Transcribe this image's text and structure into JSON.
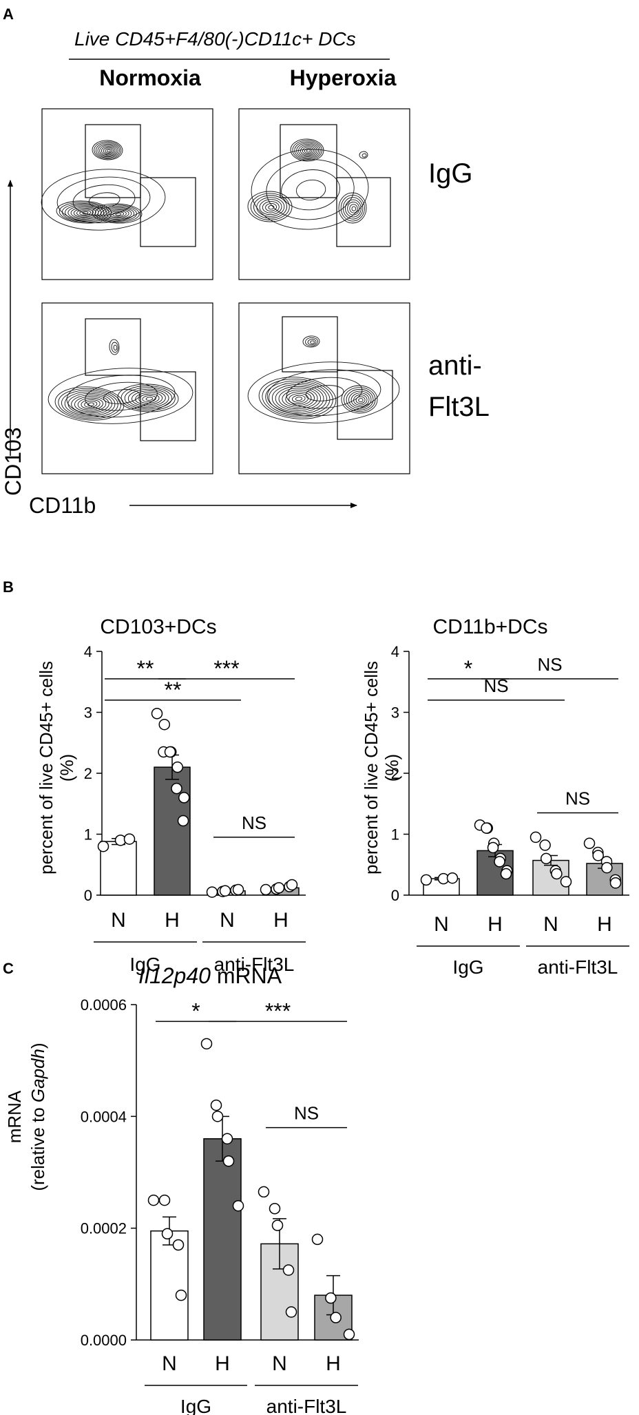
{
  "panel_a": {
    "label": "A",
    "gate_title": "Live CD45+F4/80(-)CD11c+ DCs",
    "col_labels": [
      "Normoxia",
      "Hyperoxia"
    ],
    "row_labels": [
      "IgG",
      "anti-",
      "Flt3L"
    ],
    "y_axis_label": "CD103",
    "x_axis_label": "CD11b"
  },
  "panel_b": {
    "label": "B",
    "ylabel_line1": "percent of live CD45+ cells",
    "ylabel_line2": "(%)"
  },
  "panel_c": {
    "label": "C",
    "title_italic": "Il12p40",
    "title_rest": " mRNA",
    "ylabel_line1": "mRNA",
    "ylabel_line2_a": "(relative to ",
    "ylabel_line2_italic": "Gapdh",
    "ylabel_line2_b": ")"
  },
  "colors": {
    "white": "#ffffff",
    "dark": "#5f5f5f",
    "light": "#d8d8d8",
    "mid": "#a7a7a7"
  },
  "chart_data": [
    {
      "type": "bar",
      "title": "CD103+DCs",
      "ylim": [
        0,
        4
      ],
      "yticks": [
        "0",
        "1",
        "2",
        "3",
        "4"
      ],
      "categories": [
        "N",
        "H",
        "N",
        "H"
      ],
      "groups": [
        "IgG",
        "anti-Flt3L"
      ],
      "values": [
        0.88,
        2.1,
        0.07,
        0.12
      ],
      "errors": [
        0.05,
        0.2,
        0.02,
        0.02
      ],
      "points": [
        [
          0.8,
          0.9,
          0.92
        ],
        [
          2.98,
          2.8,
          2.35,
          2.35,
          2.35,
          2.1,
          1.75,
          1.6,
          1.22
        ],
        [
          0.05,
          0.06,
          0.07,
          0.08,
          0.09
        ],
        [
          0.09,
          0.1,
          0.12,
          0.14,
          0.17
        ]
      ],
      "significance": [
        {
          "label": "**",
          "from": 0,
          "to": 1,
          "y": 3.55
        },
        {
          "label": "***",
          "from": 1,
          "to": 3,
          "y": 3.55
        },
        {
          "label": "**",
          "from": 0,
          "to": 2,
          "y": 3.2
        },
        {
          "label": "NS",
          "from": 2,
          "to": 3,
          "y": 0.95
        }
      ]
    },
    {
      "type": "bar",
      "title": "CD11b+DCs",
      "ylim": [
        0,
        4
      ],
      "yticks": [
        "0",
        "1",
        "2",
        "3",
        "4"
      ],
      "categories": [
        "N",
        "H",
        "N",
        "H"
      ],
      "groups": [
        "IgG",
        "anti-Flt3L"
      ],
      "values": [
        0.27,
        0.73,
        0.57,
        0.52
      ],
      "errors": [
        0.02,
        0.1,
        0.08,
        0.08
      ],
      "points": [
        [
          0.25,
          0.27,
          0.28
        ],
        [
          1.15,
          1.1,
          1.1,
          0.85,
          0.78,
          0.6,
          0.55,
          0.4,
          0.35
        ],
        [
          0.95,
          0.82,
          0.6,
          0.4,
          0.35,
          0.22
        ],
        [
          0.85,
          0.7,
          0.65,
          0.55,
          0.45,
          0.25,
          0.2
        ]
      ],
      "significance": [
        {
          "label": "*",
          "from": 0,
          "to": 1,
          "y": 3.55
        },
        {
          "label": "NS",
          "from": 1,
          "to": 3,
          "y": 3.55
        },
        {
          "label": "NS",
          "from": 0,
          "to": 2,
          "y": 3.2
        },
        {
          "label": "NS",
          "from": 2,
          "to": 3,
          "y": 1.35
        }
      ]
    },
    {
      "type": "bar",
      "title": "Il12p40 mRNA",
      "ylim": [
        0,
        0.0006
      ],
      "yticks": [
        "0.0000",
        "0.0002",
        "0.0004",
        "0.0006"
      ],
      "categories": [
        "N",
        "H",
        "N",
        "H"
      ],
      "groups": [
        "IgG",
        "anti-Flt3L"
      ],
      "values": [
        0.000195,
        0.00036,
        0.000172,
        8e-05
      ],
      "errors": [
        2.5e-05,
        4e-05,
        4.5e-05,
        3.5e-05
      ],
      "points": [
        [
          0.00025,
          0.00025,
          0.00019,
          0.00017,
          8e-05
        ],
        [
          0.00053,
          0.00042,
          0.0004,
          0.00036,
          0.00032,
          0.00024
        ],
        [
          0.000265,
          0.000235,
          0.000205,
          0.000125,
          5e-05
        ],
        [
          0.00018,
          7.5e-05,
          4e-05,
          1e-05
        ]
      ],
      "significance": [
        {
          "label": "*",
          "from": 0,
          "to": 1,
          "y": 0.00057
        },
        {
          "label": "***",
          "from": 1,
          "to": 3,
          "y": 0.00057
        },
        {
          "label": "NS",
          "from": 2,
          "to": 3,
          "y": 0.00038
        }
      ]
    }
  ]
}
